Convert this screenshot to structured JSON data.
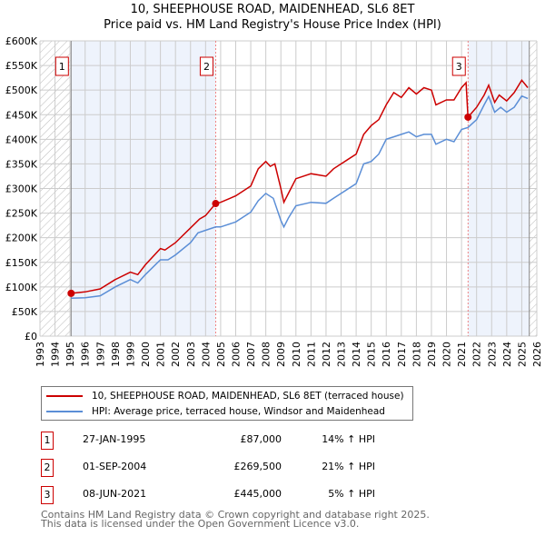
{
  "title": "10, SHEEPHOUSE ROAD, MAIDENHEAD, SL6 8ET",
  "subtitle": "Price paid vs. HM Land Registry's House Price Index (HPI)",
  "chart_data": {
    "type": "line",
    "title": "10, SHEEPHOUSE ROAD, MAIDENHEAD, SL6 8ET",
    "subtitle": "Price paid vs. HM Land Registry's House Price Index (HPI)",
    "xlim": [
      1993,
      2026
    ],
    "ylim": [
      0,
      600000
    ],
    "x_ticks": [
      "1993",
      "1994",
      "1995",
      "1996",
      "1997",
      "1998",
      "1999",
      "2000",
      "2001",
      "2002",
      "2003",
      "2004",
      "2005",
      "2006",
      "2007",
      "2008",
      "2009",
      "2010",
      "2011",
      "2012",
      "2013",
      "2014",
      "2015",
      "2016",
      "2017",
      "2018",
      "2019",
      "2020",
      "2021",
      "2022",
      "2023",
      "2024",
      "2025",
      "2026"
    ],
    "y_ticks": [
      {
        "v": 0,
        "label": "£0"
      },
      {
        "v": 50000,
        "label": "£50K"
      },
      {
        "v": 100000,
        "label": "£100K"
      },
      {
        "v": 150000,
        "label": "£150K"
      },
      {
        "v": 200000,
        "label": "£200K"
      },
      {
        "v": 250000,
        "label": "£250K"
      },
      {
        "v": 300000,
        "label": "£300K"
      },
      {
        "v": 350000,
        "label": "£350K"
      },
      {
        "v": 400000,
        "label": "£400K"
      },
      {
        "v": 450000,
        "label": "£450K"
      },
      {
        "v": 500000,
        "label": "£500K"
      },
      {
        "v": 550000,
        "label": "£550K"
      },
      {
        "v": 600000,
        "label": "£600K"
      }
    ],
    "grid": true,
    "series": [
      {
        "name": "10, SHEEPHOUSE ROAD, MAIDENHEAD, SL6 8ET (terraced house)",
        "color": "#cc0000",
        "x": [
          1995.07,
          1996,
          1997,
          1998,
          1999,
          1999.5,
          2000,
          2001,
          2001.3,
          2002,
          2003,
          2003.6,
          2004,
          2004.67,
          2005,
          2006,
          2007,
          2007.5,
          2008,
          2008.3,
          2008.6,
          2009,
          2009.2,
          2009.5,
          2010,
          2011,
          2012,
          2012.5,
          2013,
          2014,
          2014.5,
          2015,
          2015.5,
          2016,
          2016.5,
          2017,
          2017.5,
          2018,
          2018.5,
          2019,
          2019.3,
          2020,
          2020.5,
          2021,
          2021.3,
          2021.43,
          2022,
          2022.5,
          2022.8,
          2023.2,
          2023.5,
          2024,
          2024.5,
          2025,
          2025.4
        ],
        "y": [
          87000,
          90000,
          96000,
          115000,
          130000,
          125000,
          145000,
          178000,
          175000,
          190000,
          220000,
          238000,
          245000,
          269500,
          272000,
          285000,
          305000,
          340000,
          355000,
          345000,
          350000,
          300000,
          272000,
          290000,
          320000,
          330000,
          325000,
          340000,
          350000,
          370000,
          410000,
          428000,
          440000,
          470000,
          495000,
          485000,
          505000,
          492000,
          505000,
          500000,
          470000,
          480000,
          480000,
          505000,
          515000,
          445000,
          465000,
          490000,
          510000,
          475000,
          490000,
          478000,
          495000,
          520000,
          505000
        ]
      },
      {
        "name": "HPI: Average price, terraced house, Windsor and Maidenhead",
        "color": "#5b8ed6",
        "x": [
          1995.07,
          1996,
          1997,
          1998,
          1999,
          1999.5,
          2000,
          2001,
          2001.5,
          2002,
          2003,
          2003.5,
          2004,
          2004.67,
          2005,
          2006,
          2007,
          2007.5,
          2008,
          2008.5,
          2009,
          2009.2,
          2009.5,
          2010,
          2011,
          2012,
          2012.5,
          2013,
          2014,
          2014.5,
          2015,
          2015.5,
          2016,
          2016.5,
          2017,
          2017.5,
          2018,
          2018.5,
          2019,
          2019.3,
          2020,
          2020.5,
          2021,
          2021.43,
          2022,
          2022.5,
          2022.8,
          2023.2,
          2023.6,
          2024,
          2024.5,
          2025,
          2025.4
        ],
        "y": [
          77000,
          78000,
          82000,
          100000,
          115000,
          108000,
          125000,
          155000,
          155000,
          165000,
          190000,
          210000,
          215000,
          222000,
          222000,
          232000,
          252000,
          275000,
          290000,
          280000,
          235000,
          222000,
          240000,
          265000,
          272000,
          270000,
          280000,
          290000,
          310000,
          350000,
          355000,
          370000,
          400000,
          405000,
          410000,
          415000,
          405000,
          410000,
          410000,
          390000,
          400000,
          395000,
          420000,
          424000,
          440000,
          470000,
          487000,
          455000,
          465000,
          455000,
          465000,
          488000,
          483000
        ]
      }
    ],
    "sales": [
      {
        "n": "1",
        "x": 1995.07,
        "y": 87000
      },
      {
        "n": "2",
        "x": 2004.67,
        "y": 269500
      },
      {
        "n": "3",
        "x": 2021.43,
        "y": 445000
      }
    ],
    "shaded_periods": [
      [
        1995.07,
        2004.67
      ],
      [
        2021.43,
        2025.5
      ]
    ],
    "hatched_periods": [
      [
        1993,
        1995.07
      ],
      [
        2025.5,
        2026
      ]
    ],
    "legend": "below"
  },
  "legend": {
    "property": "10, SHEEPHOUSE ROAD, MAIDENHEAD, SL6 8ET (terraced house)",
    "hpi": "HPI: Average price, terraced house, Windsor and Maidenhead"
  },
  "transactions": [
    {
      "n": "1",
      "date": "27-JAN-1995",
      "price": "£87,000",
      "hpi": "14% ↑ HPI"
    },
    {
      "n": "2",
      "date": "01-SEP-2004",
      "price": "£269,500",
      "hpi": "21% ↑ HPI"
    },
    {
      "n": "3",
      "date": "08-JUN-2021",
      "price": "£445,000",
      "hpi": "5% ↑ HPI"
    }
  ],
  "footer": {
    "line1": "Contains HM Land Registry data © Crown copyright and database right 2025.",
    "line2": "This data is licensed under the Open Government Licence v3.0."
  }
}
